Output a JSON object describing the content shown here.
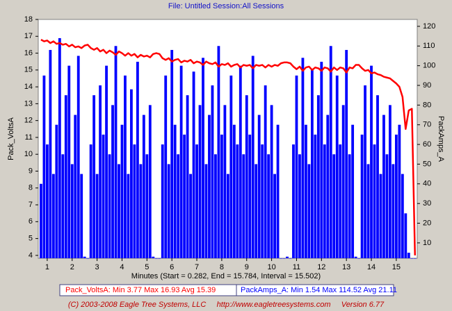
{
  "chart_data": {
    "type": "combo",
    "title": "File: Untitled   Session:All Sessions",
    "xlabel": "Minutes (Start = 0.282,  End = 15.784,  Interval =  15.502)",
    "footer": "(C) 2003-2008 Eagle Tree Systems, LLC     http://www.eagletreesystems.com     Version 6.77",
    "legend_entries": [
      "Pack_VoltsA:  Min 3.77    Max 16.93    Avg 15.39",
      "PackAmps_A:  Min 1.54    Max 114.52    Avg 21.11"
    ],
    "grid": false,
    "xlim": [
      0.64,
      15.84
    ],
    "xticks": [
      1,
      2,
      3,
      4,
      5,
      6,
      7,
      8,
      9,
      10,
      11,
      12,
      13,
      14,
      15
    ],
    "ylim": [
      3.83,
      18
    ],
    "yticks": [
      4,
      5,
      6,
      7,
      8,
      9,
      10,
      11,
      12,
      13,
      14,
      15,
      16,
      17,
      18
    ],
    "y2lim": [
      2.2,
      123.5
    ],
    "y2ticks": [
      10,
      20,
      30,
      40,
      50,
      60,
      70,
      80,
      90,
      100,
      110,
      120
    ],
    "x": [
      0.75,
      0.875,
      1,
      1.125,
      1.25,
      1.375,
      1.5,
      1.625,
      1.75,
      1.875,
      2,
      2.125,
      2.25,
      2.375,
      2.5,
      2.625,
      2.75,
      2.875,
      3,
      3.125,
      3.25,
      3.375,
      3.5,
      3.625,
      3.75,
      3.875,
      4,
      4.125,
      4.25,
      4.375,
      4.5,
      4.625,
      4.75,
      4.875,
      5,
      5.125,
      5.25,
      5.375,
      5.5,
      5.625,
      5.75,
      5.875,
      6,
      6.125,
      6.25,
      6.375,
      6.5,
      6.625,
      6.75,
      6.875,
      7,
      7.125,
      7.25,
      7.375,
      7.5,
      7.625,
      7.75,
      7.875,
      8,
      8.125,
      8.25,
      8.375,
      8.5,
      8.625,
      8.75,
      8.875,
      9,
      9.125,
      9.25,
      9.375,
      9.5,
      9.625,
      9.75,
      9.875,
      10,
      10.125,
      10.25,
      10.375,
      10.5,
      10.625,
      10.75,
      10.875,
      11,
      11.125,
      11.25,
      11.375,
      11.5,
      11.625,
      11.75,
      11.875,
      12,
      12.125,
      12.25,
      12.375,
      12.5,
      12.625,
      12.75,
      12.875,
      13,
      13.125,
      13.25,
      13.375,
      13.5,
      13.625,
      13.75,
      13.875,
      14,
      14.125,
      14.25,
      14.375,
      14.5,
      14.625,
      14.75,
      14.875,
      15,
      15.125,
      15.25,
      15.375,
      15.5,
      15.625,
      15.75
    ],
    "series": [
      {
        "name": "PackAmps_A",
        "type": "bar",
        "axis": "y2",
        "color": "#0000ff",
        "values": [
          40,
          95,
          60,
          108,
          45,
          70,
          114,
          55,
          85,
          100,
          50,
          75,
          105,
          45,
          3,
          2,
          60,
          85,
          45,
          90,
          65,
          100,
          55,
          80,
          110,
          50,
          70,
          95,
          45,
          88,
          60,
          102,
          50,
          75,
          55,
          80,
          3,
          2,
          2,
          60,
          95,
          50,
          108,
          70,
          55,
          100,
          65,
          85,
          45,
          97,
          60,
          80,
          104,
          50,
          75,
          90,
          55,
          110,
          65,
          80,
          45,
          95,
          70,
          60,
          100,
          55,
          85,
          65,
          105,
          50,
          75,
          60,
          90,
          55,
          80,
          45,
          70,
          2,
          2,
          3,
          2,
          60,
          95,
          55,
          104,
          70,
          50,
          98,
          65,
          85,
          102,
          60,
          75,
          110,
          55,
          95,
          60,
          80,
          108,
          55,
          70,
          3,
          2,
          65,
          90,
          50,
          100,
          60,
          85,
          45,
          75,
          55,
          80,
          50,
          65,
          70,
          45,
          25,
          5,
          2,
          2
        ]
      },
      {
        "name": "Pack_VoltsA",
        "type": "line",
        "color": "#ff0000",
        "values": [
          16.8,
          16.7,
          16.75,
          16.6,
          16.7,
          16.55,
          16.6,
          16.5,
          16.55,
          16.4,
          16.5,
          16.35,
          16.4,
          16.3,
          16.45,
          16.5,
          16.3,
          16.2,
          16.3,
          16.1,
          16.2,
          16.0,
          16.15,
          16.05,
          15.9,
          16.1,
          16.0,
          15.85,
          16.0,
          15.85,
          15.95,
          15.75,
          15.9,
          15.8,
          15.85,
          15.75,
          15.95,
          16.0,
          15.95,
          15.7,
          15.6,
          15.7,
          15.5,
          15.6,
          15.65,
          15.45,
          15.55,
          15.5,
          15.6,
          15.4,
          15.5,
          15.45,
          15.3,
          15.5,
          15.4,
          15.35,
          15.45,
          15.2,
          15.35,
          15.3,
          15.4,
          15.2,
          15.3,
          15.35,
          15.15,
          15.3,
          15.25,
          15.3,
          15.1,
          15.3,
          15.25,
          15.3,
          15.15,
          15.3,
          15.2,
          15.3,
          15.25,
          15.4,
          15.45,
          15.45,
          15.4,
          15.2,
          15.05,
          15.2,
          14.95,
          15.15,
          15.2,
          15.0,
          15.15,
          15.1,
          14.95,
          15.15,
          15.1,
          14.9,
          15.15,
          15.0,
          15.15,
          15.1,
          14.85,
          15.15,
          15.1,
          15.3,
          15.3,
          15.1,
          14.95,
          15.0,
          14.8,
          14.85,
          14.75,
          14.7,
          14.6,
          14.55,
          14.5,
          14.35,
          14.2,
          14.0,
          13.4,
          11.5,
          12.6,
          12.7,
          4.0
        ]
      }
    ]
  }
}
